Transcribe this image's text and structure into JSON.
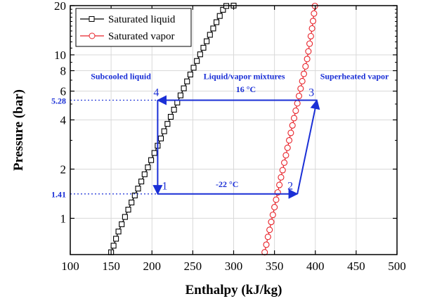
{
  "chart_data": {
    "type": "scatter",
    "xlabel": "Enthalpy (kJ/kg)",
    "ylabel": "Pressure (bar)",
    "xlim": [
      100,
      500
    ],
    "ylim": [
      0.6,
      20
    ],
    "yscale": "log",
    "grid": true,
    "legend_position": "top-left",
    "x_ticks": [
      100,
      150,
      200,
      250,
      300,
      350,
      400,
      450,
      500
    ],
    "y_ticks": [
      1,
      2,
      4,
      6,
      8,
      10,
      20
    ],
    "series": [
      {
        "name": "Saturated liquid",
        "color": "#000000",
        "marker": "square",
        "points": [
          {
            "x": 150,
            "y": 0.62
          },
          {
            "x": 153,
            "y": 0.68
          },
          {
            "x": 156,
            "y": 0.75
          },
          {
            "x": 159,
            "y": 0.83
          },
          {
            "x": 163,
            "y": 0.92
          },
          {
            "x": 167,
            "y": 1.02
          },
          {
            "x": 171,
            "y": 1.13
          },
          {
            "x": 175,
            "y": 1.25
          },
          {
            "x": 179,
            "y": 1.38
          },
          {
            "x": 183,
            "y": 1.52
          },
          {
            "x": 187,
            "y": 1.68
          },
          {
            "x": 191,
            "y": 1.86
          },
          {
            "x": 195,
            "y": 2.05
          },
          {
            "x": 199,
            "y": 2.27
          },
          {
            "x": 203,
            "y": 2.51
          },
          {
            "x": 207,
            "y": 2.78
          },
          {
            "x": 211,
            "y": 3.08
          },
          {
            "x": 215,
            "y": 3.41
          },
          {
            "x": 219,
            "y": 3.78
          },
          {
            "x": 223,
            "y": 4.18
          },
          {
            "x": 227,
            "y": 4.62
          },
          {
            "x": 231,
            "y": 5.11
          },
          {
            "x": 235,
            "y": 5.65
          },
          {
            "x": 239,
            "y": 6.24
          },
          {
            "x": 243,
            "y": 6.88
          },
          {
            "x": 247,
            "y": 7.58
          },
          {
            "x": 251,
            "y": 8.34
          },
          {
            "x": 255,
            "y": 9.17
          },
          {
            "x": 259,
            "y": 10.07
          },
          {
            "x": 263,
            "y": 11.05
          },
          {
            "x": 267,
            "y": 12.11
          },
          {
            "x": 271,
            "y": 13.26
          },
          {
            "x": 275,
            "y": 14.5
          },
          {
            "x": 279,
            "y": 15.84
          },
          {
            "x": 283,
            "y": 17.29
          },
          {
            "x": 287,
            "y": 18.86
          },
          {
            "x": 291,
            "y": 19.9
          },
          {
            "x": 300,
            "y": 20
          }
        ]
      },
      {
        "name": "Saturated vapor",
        "color": "#e8232a",
        "marker": "circle",
        "points": [
          {
            "x": 338,
            "y": 0.62
          },
          {
            "x": 340,
            "y": 0.69
          },
          {
            "x": 342,
            "y": 0.77
          },
          {
            "x": 344,
            "y": 0.85
          },
          {
            "x": 346,
            "y": 0.95
          },
          {
            "x": 348,
            "y": 1.05
          },
          {
            "x": 350,
            "y": 1.17
          },
          {
            "x": 352,
            "y": 1.3
          },
          {
            "x": 354,
            "y": 1.44
          },
          {
            "x": 356,
            "y": 1.6
          },
          {
            "x": 358,
            "y": 1.78
          },
          {
            "x": 360,
            "y": 1.97
          },
          {
            "x": 362,
            "y": 2.19
          },
          {
            "x": 364,
            "y": 2.43
          },
          {
            "x": 366,
            "y": 2.7
          },
          {
            "x": 368,
            "y": 3.0
          },
          {
            "x": 370,
            "y": 3.33
          },
          {
            "x": 372,
            "y": 3.7
          },
          {
            "x": 374,
            "y": 4.1
          },
          {
            "x": 376,
            "y": 4.55
          },
          {
            "x": 378,
            "y": 5.05
          },
          {
            "x": 380,
            "y": 5.6
          },
          {
            "x": 382,
            "y": 6.22
          },
          {
            "x": 384,
            "y": 6.9
          },
          {
            "x": 386,
            "y": 7.65
          },
          {
            "x": 388,
            "y": 8.5
          },
          {
            "x": 390,
            "y": 9.43
          },
          {
            "x": 391.5,
            "y": 10.5
          },
          {
            "x": 393,
            "y": 11.7
          },
          {
            "x": 394.5,
            "y": 13.0
          },
          {
            "x": 396,
            "y": 14.5
          },
          {
            "x": 397.2,
            "y": 16.1
          },
          {
            "x": 398.4,
            "y": 17.9
          },
          {
            "x": 399.5,
            "y": 19.9
          }
        ]
      }
    ],
    "cycle": {
      "color": "#1a2fd6",
      "points": [
        {
          "label": "1",
          "x": 207,
          "y": 1.41
        },
        {
          "label": "2",
          "x": 378,
          "y": 1.41
        },
        {
          "label": "3",
          "x": 402,
          "y": 5.28
        },
        {
          "label": "4",
          "x": 207,
          "y": 5.28
        }
      ],
      "path_order": [
        "4",
        "1",
        "2",
        "3",
        "4"
      ],
      "pressure_labels": [
        {
          "text": "5.28",
          "y": 5.28
        },
        {
          "text": "1.41",
          "y": 1.41
        }
      ],
      "temperature_labels": [
        {
          "text": "16 °C",
          "x": 315,
          "y": 5.9
        },
        {
          "text": "-22 °C",
          "x": 292,
          "y": 1.55
        }
      ]
    },
    "region_labels": [
      {
        "text": "Subcooled liquid",
        "x": 162,
        "y": 7.1
      },
      {
        "text": "Liquid/vapor mixtures",
        "x": 313,
        "y": 7.1
      },
      {
        "text": "Superheated vapor",
        "x": 448,
        "y": 7.1
      }
    ]
  }
}
